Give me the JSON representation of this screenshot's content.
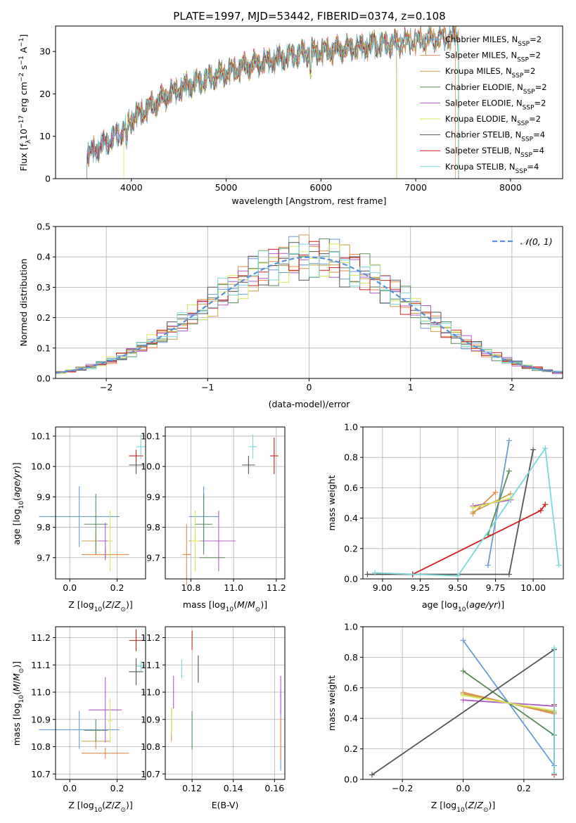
{
  "figure_title": "PLATE=1997, MJD=53442, FIBERID=0374, z=0.108",
  "colors": {
    "ChM": "#6b9bd6",
    "SaM": "#e58a4a",
    "KrM": "#c8a04a",
    "ChE": "#5a8a5a",
    "SaE": "#b05cc8",
    "KrE": "#d8e85a",
    "ChS": "#555555",
    "SaS": "#c82020",
    "KrS": "#7ad8d8",
    "norm": "#5b8fd8"
  },
  "chart_data": [
    {
      "id": "spectrum",
      "type": "line",
      "xlabel": "wavelength [Angstrom, rest frame]",
      "ylabel": "Flux [f_λ 10^-17 erg cm^-2 s^-1 A^-1]",
      "xlim": [
        3200,
        8550
      ],
      "ylim": [
        0,
        36
      ],
      "xticks": [
        4000,
        5000,
        6000,
        7000,
        8000
      ],
      "yticks": [
        0,
        10,
        20,
        30
      ],
      "legend_position": "top-right",
      "continuum": {
        "x": [
          3530,
          3700,
          3900,
          4000,
          4200,
          4400,
          4600,
          4800,
          5000,
          5200,
          5400,
          5600,
          5800,
          6000,
          6200,
          6400,
          6600,
          6800,
          7000,
          7200,
          7450
        ],
        "y": [
          5.5,
          8,
          11,
          14,
          17,
          20,
          22,
          23.5,
          25,
          26.5,
          27.5,
          28.5,
          29.5,
          30,
          30.5,
          31,
          31.5,
          32,
          32.5,
          33,
          33.5
        ]
      },
      "series": [
        {
          "name": "Chabrier MILES, N_SSP=2",
          "color_key": "ChM",
          "start": 3530,
          "end": 7450
        },
        {
          "name": "Salpeter MILES, N_SSP=2",
          "color_key": "SaM",
          "start": 3530,
          "end": 7420
        },
        {
          "name": "Kroupa MILES, N_SSP=2",
          "color_key": "KrM",
          "start": 3530,
          "end": 7450
        },
        {
          "name": "Chabrier ELODIE, N_SSP=2",
          "color_key": "ChE",
          "start": 3530,
          "end": 6800
        },
        {
          "name": "Salpeter ELODIE, N_SSP=2",
          "color_key": "SaE",
          "start": 3530,
          "end": 6800
        },
        {
          "name": "Kroupa ELODIE, N_SSP=2",
          "color_key": "KrE",
          "start": 3920,
          "end": 6800
        },
        {
          "name": "Chabrier STELIB, N_SSP=4",
          "color_key": "ChS",
          "start": 3530,
          "end": 7450
        },
        {
          "name": "Salpeter STELIB, N_SSP=4",
          "color_key": "SaS",
          "start": 3530,
          "end": 7450
        },
        {
          "name": "Kroupa STELIB, N_SSP=4",
          "color_key": "KrS",
          "start": 3530,
          "end": 7450
        }
      ]
    },
    {
      "id": "residuals",
      "type": "histogram",
      "xlabel": "(data-model)/error",
      "ylabel": "Normed distribution",
      "xlim": [
        -2.5,
        2.5
      ],
      "ylim": [
        0,
        0.5
      ],
      "xticks": [
        -2,
        -1,
        0,
        1,
        2
      ],
      "yticks": [
        0.0,
        0.1,
        0.2,
        0.3,
        0.4,
        0.5
      ],
      "grid": true,
      "legend_position": "top-right",
      "reference_curve": {
        "name": "𝒩(0, 1)",
        "style": "dashed",
        "color_key": "norm"
      },
      "bin_edges_start": -2.5,
      "bin_width": 0.1,
      "n_bins": 50,
      "series_color_keys": [
        "ChM",
        "SaM",
        "KrM",
        "ChE",
        "SaE",
        "KrE",
        "ChS",
        "SaS",
        "KrS"
      ]
    },
    {
      "id": "age_vs_Z",
      "type": "errorbar",
      "xlabel": "Z [log10(Z/Z⊙)]",
      "ylabel": "age [log10(age/yr)]",
      "xlim": [
        -0.06,
        0.32
      ],
      "ylim": [
        9.63,
        10.13
      ],
      "xticks": [
        0.0,
        0.2
      ],
      "yticks": [
        9.7,
        9.8,
        9.9,
        10.0,
        10.1
      ],
      "grid": true,
      "points": [
        {
          "color_key": "ChM",
          "x": 0.04,
          "y": 9.835,
          "xerr": 0.17,
          "yerr": 0.1
        },
        {
          "color_key": "SaM",
          "x": 0.15,
          "y": 9.71,
          "xerr": 0.1,
          "yerr": 0.02
        },
        {
          "color_key": "KrM",
          "x": 0.11,
          "y": 9.755,
          "xerr": 0.06,
          "yerr": 0.03
        },
        {
          "color_key": "ChE",
          "x": 0.11,
          "y": 9.81,
          "xerr": 0.05,
          "yerr": 0.1
        },
        {
          "color_key": "SaE",
          "x": 0.15,
          "y": 9.755,
          "xerr": 0.03,
          "yerr": 0.06
        },
        {
          "color_key": "KrE",
          "x": 0.17,
          "y": 9.755,
          "xerr": 0.01,
          "yerr": 0.1
        },
        {
          "color_key": "ChS",
          "x": 0.28,
          "y": 10.005,
          "xerr": 0.03,
          "yerr": 0.03
        },
        {
          "color_key": "SaS",
          "x": 0.28,
          "y": 10.035,
          "xerr": 0.03,
          "yerr": 0.02
        },
        {
          "color_key": "KrS",
          "x": 0.3,
          "y": 10.065,
          "xerr": 0.02,
          "yerr": 0.04
        }
      ]
    },
    {
      "id": "age_vs_mass",
      "type": "errorbar",
      "xlabel": "mass [log10(M/M⊙)]",
      "ylabel": "",
      "xlim": [
        10.68,
        11.24
      ],
      "ylim": [
        9.63,
        10.13
      ],
      "xticks": [
        10.8,
        11.0,
        11.2
      ],
      "yticks": [
        9.7,
        9.8,
        9.9,
        10.0,
        10.1
      ],
      "grid": true,
      "points": [
        {
          "color_key": "ChM",
          "x": 10.86,
          "y": 9.835,
          "xerr": 0.07,
          "yerr": 0.1
        },
        {
          "color_key": "SaM",
          "x": 10.78,
          "y": 9.71,
          "xerr": 0.02,
          "yerr": 0.1
        },
        {
          "color_key": "KrM",
          "x": 10.82,
          "y": 9.755,
          "xerr": 0.03,
          "yerr": 0.02
        },
        {
          "color_key": "ChE",
          "x": 10.86,
          "y": 9.81,
          "xerr": 0.04,
          "yerr": 0.1
        },
        {
          "color_key": "SaE",
          "x": 10.93,
          "y": 9.755,
          "xerr": 0.08,
          "yerr": 0.1
        },
        {
          "color_key": "KrE",
          "x": 10.82,
          "y": 9.755,
          "xerr": 0.02,
          "yerr": 0.1
        },
        {
          "color_key": "ChS",
          "x": 11.07,
          "y": 10.005,
          "xerr": 0.03,
          "yerr": 0.03
        },
        {
          "color_key": "SaS",
          "x": 11.19,
          "y": 10.035,
          "xerr": 0.02,
          "yerr": 0.06
        },
        {
          "color_key": "KrS",
          "x": 11.09,
          "y": 10.065,
          "xerr": 0.02,
          "yerr": 0.04
        },
        {
          "color_key": "SaE",
          "x": 10.93,
          "y": 9.835,
          "xerr": 0.0,
          "yerr": 0.0
        },
        {
          "color_key": "ChE",
          "x": 10.9,
          "y": 9.7,
          "xerr": 0.06,
          "yerr": 0.0
        }
      ]
    },
    {
      "id": "massweight_vs_age",
      "type": "line",
      "xlabel": "age [log10(age/yr)]",
      "ylabel": "mass weight",
      "xlim": [
        8.87,
        10.2
      ],
      "ylim": [
        0,
        1.0
      ],
      "xticks": [
        9.0,
        9.25,
        9.5,
        9.75,
        10.0
      ],
      "yticks": [
        0.0,
        0.2,
        0.4,
        0.6,
        0.8,
        1.0
      ],
      "grid": true,
      "series": [
        {
          "color_key": "ChM",
          "x": [
            9.7,
            9.84
          ],
          "y": [
            0.09,
            0.91
          ]
        },
        {
          "color_key": "SaM",
          "x": [
            9.6,
            9.75
          ],
          "y": [
            0.43,
            0.57
          ]
        },
        {
          "color_key": "KrM",
          "x": [
            9.6,
            9.85
          ],
          "y": [
            0.44,
            0.56
          ]
        },
        {
          "color_key": "ChE",
          "x": [
            9.7,
            9.84
          ],
          "y": [
            0.29,
            0.71
          ]
        },
        {
          "color_key": "SaE",
          "x": [
            9.6,
            9.85
          ],
          "y": [
            0.48,
            0.52
          ]
        },
        {
          "color_key": "KrE",
          "x": [
            9.6,
            9.85
          ],
          "y": [
            0.47,
            0.53
          ]
        },
        {
          "color_key": "ChS",
          "x": [
            8.9,
            9.2,
            9.84,
            10.0
          ],
          "y": [
            0.03,
            0.03,
            0.03,
            0.85
          ]
        },
        {
          "color_key": "SaS",
          "x": [
            9.2,
            10.05,
            10.08
          ],
          "y": [
            0.03,
            0.45,
            0.49
          ]
        },
        {
          "color_key": "KrS",
          "x": [
            8.95,
            9.5,
            10.08,
            10.17
          ],
          "y": [
            0.04,
            0.02,
            0.86,
            0.09
          ]
        }
      ]
    },
    {
      "id": "mass_vs_Z",
      "type": "errorbar",
      "xlabel": "Z [log10(Z/Z⊙)]",
      "ylabel": "mass [log10(M/M⊙)]",
      "xlim": [
        -0.06,
        0.32
      ],
      "ylim": [
        10.68,
        11.24
      ],
      "xticks": [
        0.0,
        0.2
      ],
      "yticks": [
        10.7,
        10.8,
        10.9,
        11.0,
        11.1,
        11.2
      ],
      "grid": true,
      "points": [
        {
          "color_key": "ChM",
          "x": 0.04,
          "y": 10.862,
          "xerr": 0.17,
          "yerr": 0.07
        },
        {
          "color_key": "SaM",
          "x": 0.15,
          "y": 10.776,
          "xerr": 0.1,
          "yerr": 0.02
        },
        {
          "color_key": "KrM",
          "x": 0.11,
          "y": 10.82,
          "xerr": 0.06,
          "yerr": 0.03
        },
        {
          "color_key": "ChE",
          "x": 0.11,
          "y": 10.86,
          "xerr": 0.05,
          "yerr": 0.04
        },
        {
          "color_key": "SaE",
          "x": 0.15,
          "y": 10.935,
          "xerr": 0.07,
          "yerr": 0.12
        },
        {
          "color_key": "KrE",
          "x": 0.17,
          "y": 10.895,
          "xerr": 0.01,
          "yerr": 0.08
        },
        {
          "color_key": "ChS",
          "x": 0.28,
          "y": 11.075,
          "xerr": 0.03,
          "yerr": 0.05
        },
        {
          "color_key": "SaS",
          "x": 0.28,
          "y": 11.19,
          "xerr": 0.03,
          "yerr": 0.04
        },
        {
          "color_key": "KrS",
          "x": 0.3,
          "y": 11.095,
          "xerr": 0.02,
          "yerr": 0.02
        }
      ]
    },
    {
      "id": "mass_vs_EBV",
      "type": "errorbar",
      "xlabel": "E(B-V)",
      "ylabel": "",
      "xlim": [
        0.107,
        0.165
      ],
      "ylim": [
        10.68,
        11.24
      ],
      "xticks": [
        0.12,
        0.14,
        0.16
      ],
      "yticks": [
        10.7,
        10.8,
        10.9,
        11.0,
        11.1,
        11.2
      ],
      "grid": true,
      "points": [
        {
          "color_key": "ChM",
          "x": 0.163,
          "y": 10.862,
          "xerr": 0.0,
          "yerr": 0.15
        },
        {
          "color_key": "SaM",
          "x": 0.163,
          "y": 10.83,
          "xerr": 0.0,
          "yerr": 0.08
        },
        {
          "color_key": "KrM",
          "x": 0.11,
          "y": 10.88,
          "xerr": 0.0,
          "yerr": 0.06
        },
        {
          "color_key": "ChE",
          "x": 0.12,
          "y": 10.86,
          "xerr": 0.0,
          "yerr": 0.07
        },
        {
          "color_key": "SaE",
          "x": 0.111,
          "y": 11.0,
          "xerr": 0.0,
          "yerr": 0.06
        },
        {
          "color_key": "KrE",
          "x": 0.11,
          "y": 10.895,
          "xerr": 0.0,
          "yerr": 0.05
        },
        {
          "color_key": "ChS",
          "x": 0.123,
          "y": 11.085,
          "xerr": 0.0,
          "yerr": 0.05
        },
        {
          "color_key": "SaS",
          "x": 0.12,
          "y": 11.19,
          "xerr": 0.0,
          "yerr": 0.035
        },
        {
          "color_key": "KrS",
          "x": 0.115,
          "y": 11.085,
          "xerr": 0.0,
          "yerr": 0.035
        },
        {
          "color_key": "SaE",
          "x": 0.163,
          "y": 10.99,
          "xerr": 0.0,
          "yerr": 0.07
        }
      ]
    },
    {
      "id": "massweight_vs_Z",
      "type": "line",
      "xlabel": "Z [log10(Z/Z⊙)]",
      "ylabel": "mass weight",
      "xlim": [
        -0.33,
        0.33
      ],
      "ylim": [
        0,
        1.0
      ],
      "xticks": [
        -0.2,
        0.0,
        0.2
      ],
      "yticks": [
        0.0,
        0.2,
        0.4,
        0.6,
        0.8,
        1.0
      ],
      "grid": true,
      "series": [
        {
          "color_key": "ChM",
          "x": [
            0.0,
            0.3
          ],
          "y": [
            0.91,
            0.09
          ]
        },
        {
          "color_key": "SaM",
          "x": [
            0.0,
            0.3
          ],
          "y": [
            0.57,
            0.43
          ]
        },
        {
          "color_key": "KrM",
          "x": [
            0.0,
            0.3
          ],
          "y": [
            0.56,
            0.44
          ]
        },
        {
          "color_key": "ChE",
          "x": [
            0.0,
            0.3
          ],
          "y": [
            0.71,
            0.29
          ]
        },
        {
          "color_key": "SaE",
          "x": [
            0.0,
            0.3
          ],
          "y": [
            0.52,
            0.48
          ]
        },
        {
          "color_key": "KrE",
          "x": [
            0.0,
            0.3
          ],
          "y": [
            0.55,
            0.45
          ]
        },
        {
          "color_key": "ChS",
          "x": [
            -0.3,
            0.3
          ],
          "y": [
            0.03,
            0.85
          ]
        },
        {
          "color_key": "SaS",
          "x": [
            0.3,
            0.3
          ],
          "y": [
            0.03,
            0.49
          ]
        },
        {
          "color_key": "KrS",
          "x": [
            0.3,
            0.3
          ],
          "y": [
            0.04,
            0.86
          ]
        }
      ]
    }
  ]
}
